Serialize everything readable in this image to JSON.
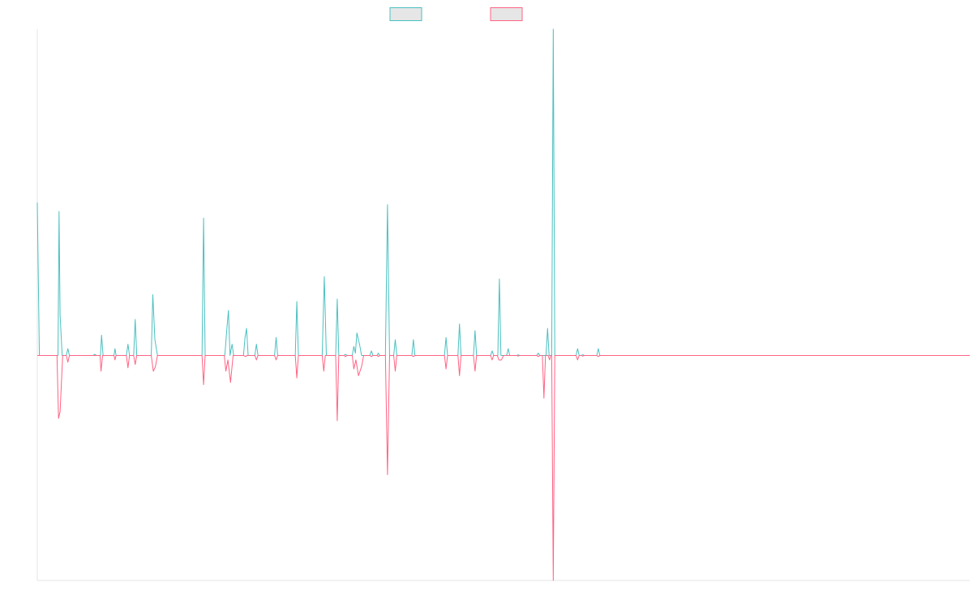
{
  "chart_data": {
    "type": "line",
    "title": "",
    "xlabel": "",
    "ylabel": "",
    "grid": false,
    "legend_position": "top-center",
    "xlim": [
      0,
      180
    ],
    "ylim": [
      -1,
      1.45
    ],
    "series": [
      {
        "color": "#4bc0c0",
        "points": [
          [
            0,
            0.68
          ],
          [
            0.4,
            0
          ],
          [
            4,
            0
          ],
          [
            4.2,
            0.64
          ],
          [
            4.4,
            0.18
          ],
          [
            4.8,
            0
          ],
          [
            5.6,
            0
          ],
          [
            5.9,
            0.03
          ],
          [
            6.2,
            0
          ],
          [
            10.8,
            0
          ],
          [
            11.1,
            0.005
          ],
          [
            11.4,
            0
          ],
          [
            12.2,
            0
          ],
          [
            12.4,
            0.09
          ],
          [
            12.7,
            0
          ],
          [
            14.8,
            0
          ],
          [
            15,
            0.03
          ],
          [
            15.2,
            0
          ],
          [
            17.2,
            0
          ],
          [
            17.5,
            0.05
          ],
          [
            17.8,
            0
          ],
          [
            18.6,
            0
          ],
          [
            18.9,
            0.16
          ],
          [
            19.2,
            0
          ],
          [
            22,
            0
          ],
          [
            22.3,
            0.27
          ],
          [
            22.7,
            0.07
          ],
          [
            23.2,
            0
          ],
          [
            31.8,
            0
          ],
          [
            32.1,
            0.61
          ],
          [
            32.4,
            0
          ],
          [
            36.2,
            0
          ],
          [
            36.6,
            0.12
          ],
          [
            36.9,
            0.2
          ],
          [
            37.2,
            0
          ],
          [
            37.6,
            0.05
          ],
          [
            37.9,
            0
          ],
          [
            39.8,
            0
          ],
          [
            40.1,
            0.08
          ],
          [
            40.4,
            0.12
          ],
          [
            40.7,
            0
          ],
          [
            42,
            0
          ],
          [
            42.3,
            0.05
          ],
          [
            42.6,
            0
          ],
          [
            45.8,
            0
          ],
          [
            46.1,
            0.08
          ],
          [
            46.4,
            0
          ],
          [
            49.8,
            0
          ],
          [
            50.1,
            0.24
          ],
          [
            50.4,
            0
          ],
          [
            55,
            0
          ],
          [
            55.4,
            0.35
          ],
          [
            55.8,
            0
          ],
          [
            57.6,
            0
          ],
          [
            57.9,
            0.25
          ],
          [
            58.2,
            0
          ],
          [
            59.2,
            0
          ],
          [
            59.5,
            0.005
          ],
          [
            59.8,
            0
          ],
          [
            60.8,
            0
          ],
          [
            61.1,
            0.04
          ],
          [
            61.4,
            0.01
          ],
          [
            61.7,
            0.1
          ],
          [
            62.2,
            0.05
          ],
          [
            62.6,
            0
          ],
          [
            64.2,
            0
          ],
          [
            64.5,
            0.02
          ],
          [
            64.8,
            0
          ],
          [
            65.6,
            0
          ],
          [
            65.8,
            0.01
          ],
          [
            66.1,
            0
          ],
          [
            67.2,
            0
          ],
          [
            67.6,
            0.67
          ],
          [
            68,
            0
          ],
          [
            68.8,
            0
          ],
          [
            69.1,
            0.07
          ],
          [
            69.4,
            0
          ],
          [
            72.3,
            0
          ],
          [
            72.6,
            0.07
          ],
          [
            72.9,
            0
          ],
          [
            78.6,
            0
          ],
          [
            78.9,
            0.08
          ],
          [
            79.2,
            0
          ],
          [
            81.2,
            0
          ],
          [
            81.5,
            0.14
          ],
          [
            81.8,
            0
          ],
          [
            84.2,
            0
          ],
          [
            84.5,
            0.11
          ],
          [
            84.8,
            0
          ],
          [
            87.5,
            0
          ],
          [
            87.8,
            0.02
          ],
          [
            88.1,
            0
          ],
          [
            88.9,
            0
          ],
          [
            89.2,
            0.34
          ],
          [
            89.5,
            0
          ],
          [
            90.6,
            0
          ],
          [
            90.9,
            0.03
          ],
          [
            91.2,
            0
          ],
          [
            92.6,
            0
          ],
          [
            92.8,
            0.003
          ],
          [
            93.1,
            0
          ],
          [
            96.4,
            0
          ],
          [
            96.7,
            0.01
          ],
          [
            97,
            0
          ],
          [
            98.2,
            0
          ],
          [
            98.5,
            0.12
          ],
          [
            98.8,
            0
          ],
          [
            99.3,
            0
          ],
          [
            99.6,
            1.45
          ],
          [
            99.9,
            0
          ],
          [
            104,
            0
          ],
          [
            104.3,
            0.03
          ],
          [
            104.6,
            0
          ],
          [
            105,
            0
          ],
          [
            105.3,
            0.003
          ],
          [
            105.6,
            0
          ],
          [
            108,
            0
          ],
          [
            108.3,
            0.03
          ],
          [
            108.6,
            0
          ],
          [
            180,
            0
          ]
        ]
      },
      {
        "color": "#ff6384",
        "points": [
          [
            0,
            0
          ],
          [
            3.8,
            0
          ],
          [
            4.1,
            -0.28
          ],
          [
            4.4,
            -0.25
          ],
          [
            4.9,
            0
          ],
          [
            5.6,
            0
          ],
          [
            5.9,
            -0.03
          ],
          [
            6.2,
            0
          ],
          [
            12.1,
            0
          ],
          [
            12.3,
            -0.07
          ],
          [
            12.6,
            0
          ],
          [
            14.8,
            0
          ],
          [
            15,
            -0.02
          ],
          [
            15.2,
            0
          ],
          [
            17.2,
            0
          ],
          [
            17.5,
            -0.055
          ],
          [
            17.8,
            0
          ],
          [
            18.6,
            0
          ],
          [
            18.9,
            -0.04
          ],
          [
            19.2,
            0
          ],
          [
            22,
            0
          ],
          [
            22.4,
            -0.07
          ],
          [
            22.8,
            -0.05
          ],
          [
            23.2,
            0
          ],
          [
            31.8,
            0
          ],
          [
            32.1,
            -0.13
          ],
          [
            32.4,
            0
          ],
          [
            36.1,
            0
          ],
          [
            36.4,
            -0.07
          ],
          [
            36.8,
            -0.02
          ],
          [
            37.3,
            -0.12
          ],
          [
            37.8,
            0
          ],
          [
            39.8,
            0
          ],
          [
            40.2,
            -0.005
          ],
          [
            40.5,
            0
          ],
          [
            42,
            0
          ],
          [
            42.3,
            -0.02
          ],
          [
            42.6,
            0
          ],
          [
            45.8,
            0
          ],
          [
            46.1,
            -0.02
          ],
          [
            46.4,
            0
          ],
          [
            49.8,
            0
          ],
          [
            50.1,
            -0.1
          ],
          [
            50.4,
            0
          ],
          [
            55,
            0
          ],
          [
            55.3,
            -0.07
          ],
          [
            55.6,
            0
          ],
          [
            57.6,
            0
          ],
          [
            57.9,
            -0.29
          ],
          [
            58.2,
            0
          ],
          [
            59.2,
            0
          ],
          [
            59.5,
            -0.005
          ],
          [
            59.8,
            0
          ],
          [
            60.8,
            0
          ],
          [
            61.1,
            -0.06
          ],
          [
            61.5,
            -0.02
          ],
          [
            62,
            -0.09
          ],
          [
            62.6,
            -0.05
          ],
          [
            63,
            0
          ],
          [
            64.2,
            0
          ],
          [
            64.5,
            -0.005
          ],
          [
            64.8,
            0
          ],
          [
            65.6,
            0
          ],
          [
            65.8,
            -0.005
          ],
          [
            66.1,
            0
          ],
          [
            67.2,
            0
          ],
          [
            67.6,
            -0.53
          ],
          [
            68,
            0
          ],
          [
            68.8,
            0
          ],
          [
            69.1,
            -0.07
          ],
          [
            69.4,
            0
          ],
          [
            72.3,
            0
          ],
          [
            72.6,
            -0.005
          ],
          [
            72.9,
            0
          ],
          [
            78.6,
            0
          ],
          [
            78.9,
            -0.06
          ],
          [
            79.2,
            0
          ],
          [
            81.2,
            0
          ],
          [
            81.5,
            -0.09
          ],
          [
            81.8,
            0
          ],
          [
            84.2,
            0
          ],
          [
            84.5,
            -0.07
          ],
          [
            84.8,
            0
          ],
          [
            87.5,
            0
          ],
          [
            87.8,
            -0.02
          ],
          [
            88.1,
            0
          ],
          [
            88.8,
            0
          ],
          [
            89.1,
            -0.02
          ],
          [
            89.6,
            -0.02
          ],
          [
            90,
            0
          ],
          [
            92.6,
            0
          ],
          [
            92.8,
            -0.003
          ],
          [
            93.1,
            0
          ],
          [
            96.4,
            0
          ],
          [
            96.7,
            -0.005
          ],
          [
            97,
            0
          ],
          [
            97.5,
            0
          ],
          [
            97.8,
            -0.19
          ],
          [
            98.1,
            0
          ],
          [
            98.6,
            0
          ],
          [
            98.9,
            -0.02
          ],
          [
            99.1,
            0
          ],
          [
            99.3,
            0
          ],
          [
            99.6,
            -1
          ],
          [
            99.9,
            0
          ],
          [
            104,
            0
          ],
          [
            104.3,
            -0.02
          ],
          [
            104.6,
            0
          ],
          [
            105,
            0
          ],
          [
            105.3,
            -0.003
          ],
          [
            105.6,
            0
          ],
          [
            108,
            0
          ],
          [
            108.3,
            -0.005
          ],
          [
            108.6,
            0
          ],
          [
            180,
            0
          ]
        ]
      }
    ]
  }
}
